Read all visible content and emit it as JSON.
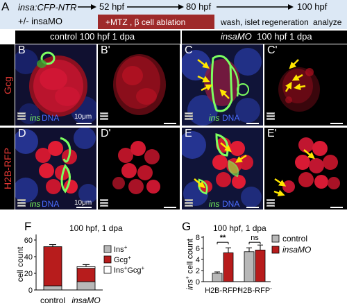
{
  "panel_a": {
    "letter": "A",
    "line1": "insa:CFP-NTR",
    "line2": "+/- insaMO",
    "t1": "52 hpf",
    "t2": "80 hpf",
    "t3": "100 hpf",
    "ablation": "+MTZ ,  β cell ablation",
    "regen": "wash,  islet regeneration",
    "analyze": "analyze"
  },
  "headers": {
    "control": "control   100 hpf  1 dpa",
    "mo_name": "insaMO",
    "mo_rest": "100 hpf  1 dpa"
  },
  "side_labels": {
    "row1": "Gcg",
    "row2": "H2B-RFP"
  },
  "panels": {
    "B": "B",
    "B2": "B'",
    "C": "C",
    "C2": "C'",
    "D": "D",
    "D2": "D'",
    "E": "E",
    "E2": "E'"
  },
  "micro_labels": {
    "ins": "ins",
    "dna": "DNA",
    "scale": "10μm"
  },
  "colors": {
    "red": "#b71c1c",
    "gcg": "#e53935",
    "bar_gray": "#b8b8b8",
    "ins_white": "#ffffff",
    "arrow_yellow": "#ffe600"
  },
  "chart_F": {
    "letter": "F",
    "title": "100 hpf, 1 dpa",
    "ylabel": "cell count",
    "yticks": [
      "0",
      "20",
      "40",
      "60"
    ],
    "categories": [
      "control",
      "insaMO"
    ],
    "legend": [
      "Ins+",
      "Gcg+",
      "Ins+Gcg+"
    ]
  },
  "chart_G": {
    "letter": "G",
    "title": "100 hpf, 1 dpa",
    "ylabel_pre": "ins",
    "ylabel_post": " cell count",
    "yticks": [
      "0",
      "2",
      "4",
      "6",
      "8"
    ],
    "categories": [
      "H2B-RFP+",
      "H2B-RFP-"
    ],
    "legend": [
      "control",
      "insaMO"
    ],
    "sig": [
      "**",
      "ns"
    ]
  },
  "chart_data": [
    {
      "type": "bar",
      "stacked": true,
      "categories": [
        "control",
        "insaMO"
      ],
      "series": [
        {
          "name": "Ins+",
          "values": [
            5,
            10
          ],
          "color": "#b8b8b8"
        },
        {
          "name": "Gcg+",
          "values": [
            47,
            16
          ],
          "color": "#b71c1c"
        },
        {
          "name": "Ins+Gcg+",
          "values": [
            0,
            2
          ],
          "color": "#ffffff"
        }
      ],
      "title": "100 hpf, 1 dpa",
      "ylabel": "cell count",
      "ylim": [
        0,
        65
      ]
    },
    {
      "type": "bar",
      "categories": [
        "H2B-RFP+",
        "H2B-RFP-"
      ],
      "series": [
        {
          "name": "control",
          "values": [
            1.5,
            5.4
          ],
          "errors": [
            0.25,
            0.7
          ],
          "color": "#b8b8b8"
        },
        {
          "name": "insaMO",
          "values": [
            5.2,
            5.7
          ],
          "errors": [
            0.9,
            0.9
          ],
          "color": "#b71c1c"
        }
      ],
      "title": "100 hpf, 1 dpa",
      "ylabel": "ins+ cell count",
      "ylim": [
        0,
        8
      ]
    }
  ]
}
